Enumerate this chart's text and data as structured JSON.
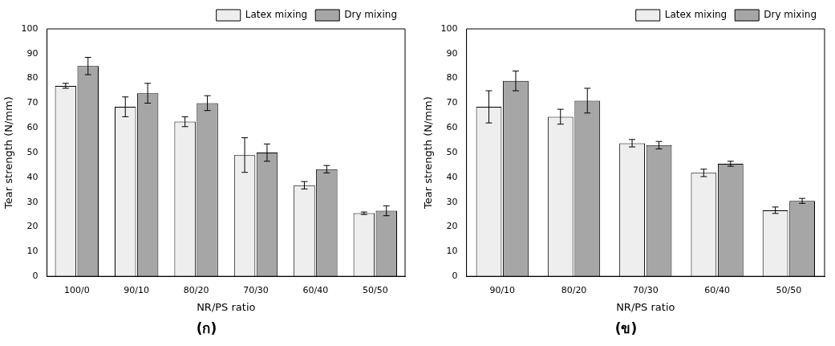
{
  "chart_data": [
    {
      "type": "bar",
      "xlabel": "NR/PS ratio",
      "ylabel": "Tear strength (N/mm)",
      "categories": [
        "100/0",
        "90/10",
        "80/20",
        "70/30",
        "60/40",
        "50/50"
      ],
      "series": [
        {
          "name": "Latex mixing",
          "color": "#eeeeee",
          "values": [
            77,
            68.5,
            62.5,
            49,
            36.8,
            25.5
          ],
          "errors": [
            1,
            4,
            2,
            7,
            1.5,
            0.5
          ]
        },
        {
          "name": "Dry mixing",
          "color": "#a6a6a6",
          "values": [
            85,
            74,
            70,
            50,
            43.3,
            26.5
          ],
          "errors": [
            3.5,
            4,
            3,
            3.5,
            1.5,
            2
          ]
        }
      ],
      "ylim": [
        0,
        100
      ],
      "yticks": [
        0,
        10,
        20,
        30,
        40,
        50,
        60,
        70,
        80,
        90,
        100
      ],
      "legend": "top right",
      "annotations": [
        "(ก)"
      ]
    },
    {
      "type": "bar",
      "xlabel": "NR/PS ratio",
      "ylabel": "Tear strength (N/mm)",
      "categories": [
        "90/10",
        "80/20",
        "70/30",
        "60/40",
        "50/50"
      ],
      "series": [
        {
          "name": "Latex mixing",
          "color": "#eeeeee",
          "values": [
            68.5,
            64.5,
            53.8,
            41.8,
            26.7
          ],
          "errors": [
            6.5,
            3,
            1.5,
            1.5,
            1.3
          ]
        },
        {
          "name": "Dry mixing",
          "color": "#a6a6a6",
          "values": [
            79,
            71,
            53,
            45.5,
            30.5
          ],
          "errors": [
            4,
            5,
            1.5,
            1,
            1
          ]
        }
      ],
      "ylim": [
        0,
        100
      ],
      "yticks": [
        0,
        10,
        20,
        30,
        40,
        50,
        60,
        70,
        80,
        90,
        100
      ],
      "legend": "top right",
      "annotations": [
        "(ข)"
      ]
    }
  ]
}
